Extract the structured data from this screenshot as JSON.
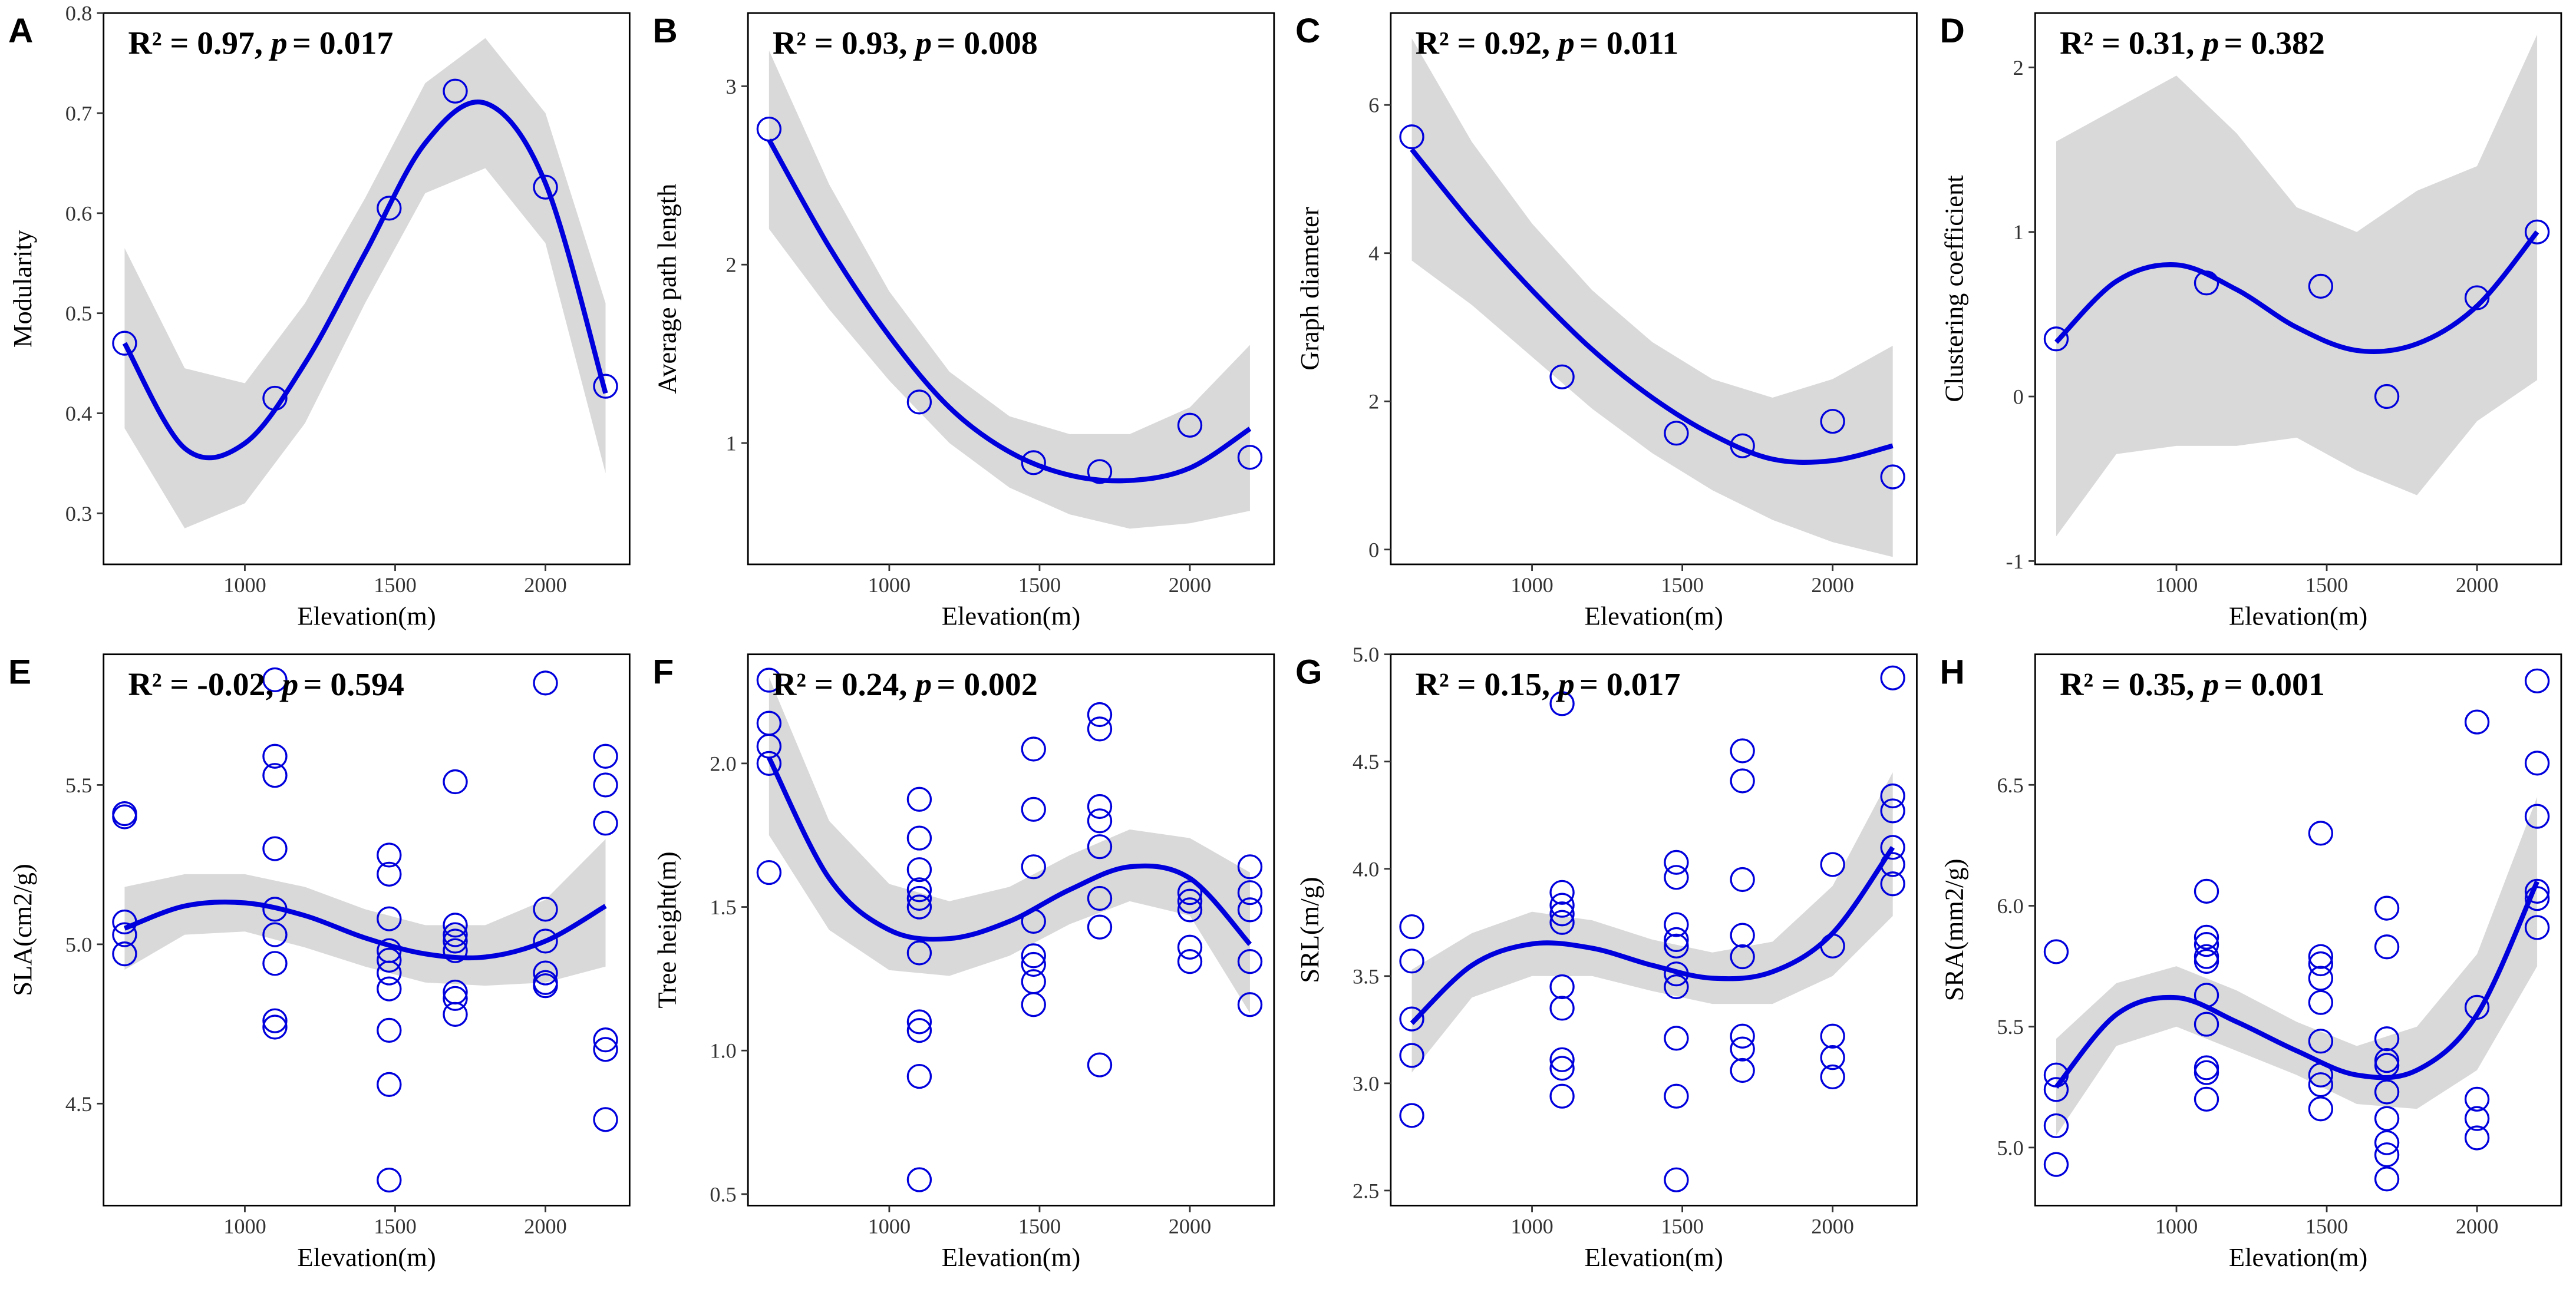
{
  "chart_data": [
    {
      "type": "scatter",
      "label": "A",
      "r2_text": "R² = 0.97,",
      "p_symbol": "p",
      "p_text": "= 0.017",
      "xlabel": "Elevation(m)",
      "ylabel": "Modularity",
      "color": "#0000dd",
      "band_color": "#d9d9d9",
      "xlim": [
        530,
        2280
      ],
      "xticks": [
        1000,
        1500,
        2000
      ],
      "ylim": [
        0.249,
        0.8
      ],
      "yticks": [
        0.3,
        0.4,
        0.5,
        0.6,
        0.7,
        0.8
      ],
      "x": [
        600,
        1100,
        1480,
        1700,
        2000,
        2200
      ],
      "y": [
        0.47,
        0.415,
        0.605,
        0.722,
        0.626,
        0.427
      ],
      "fit_x": [
        600,
        800,
        1000,
        1200,
        1400,
        1600,
        1800,
        2000,
        2200
      ],
      "fit_y": [
        0.47,
        0.365,
        0.37,
        0.45,
        0.56,
        0.67,
        0.71,
        0.63,
        0.42
      ],
      "fit_lower": [
        0.385,
        0.285,
        0.31,
        0.39,
        0.51,
        0.62,
        0.645,
        0.57,
        0.34
      ],
      "fit_upper": [
        0.565,
        0.445,
        0.43,
        0.51,
        0.615,
        0.73,
        0.775,
        0.7,
        0.51
      ]
    },
    {
      "type": "scatter",
      "label": "B",
      "r2_text": "R² = 0.93,",
      "p_symbol": "p",
      "p_text": "= 0.008",
      "xlabel": "Elevation(m)",
      "ylabel": "Average path length",
      "color": "#0000dd",
      "band_color": "#d9d9d9",
      "xlim": [
        530,
        2280
      ],
      "xticks": [
        1000,
        1500,
        2000
      ],
      "ylim": [
        0.32,
        3.41
      ],
      "yticks": [
        1,
        2,
        3
      ],
      "x": [
        600,
        1100,
        1480,
        1700,
        2000,
        2200
      ],
      "y": [
        2.76,
        1.23,
        0.89,
        0.84,
        1.1,
        0.92
      ],
      "fit_x": [
        600,
        800,
        1000,
        1200,
        1400,
        1600,
        1800,
        2000,
        2200
      ],
      "fit_y": [
        2.7,
        2.1,
        1.6,
        1.2,
        0.95,
        0.82,
        0.79,
        0.86,
        1.08
      ],
      "fit_lower": [
        2.2,
        1.75,
        1.35,
        1.0,
        0.75,
        0.6,
        0.52,
        0.55,
        0.62
      ],
      "fit_upper": [
        3.2,
        2.45,
        1.85,
        1.4,
        1.15,
        1.05,
        1.05,
        1.2,
        1.55
      ]
    },
    {
      "type": "scatter",
      "label": "C",
      "r2_text": "R² = 0.92,",
      "p_symbol": "p",
      "p_text": "= 0.011",
      "xlabel": "Elevation(m)",
      "ylabel": "Graph diameter",
      "color": "#0000dd",
      "band_color": "#d9d9d9",
      "xlim": [
        530,
        2280
      ],
      "xticks": [
        1000,
        1500,
        2000
      ],
      "ylim": [
        -0.2,
        7.24
      ],
      "yticks": [
        0,
        2,
        4,
        6
      ],
      "x": [
        600,
        1100,
        1480,
        1700,
        2000,
        2200
      ],
      "y": [
        5.57,
        2.33,
        1.57,
        1.4,
        1.73,
        0.98
      ],
      "fit_x": [
        600,
        800,
        1000,
        1200,
        1400,
        1600,
        1800,
        2000,
        2200
      ],
      "fit_y": [
        5.4,
        4.4,
        3.5,
        2.7,
        2.05,
        1.55,
        1.22,
        1.2,
        1.4
      ],
      "fit_lower": [
        3.9,
        3.3,
        2.6,
        1.9,
        1.3,
        0.8,
        0.4,
        0.1,
        -0.1
      ],
      "fit_upper": [
        6.9,
        5.5,
        4.4,
        3.5,
        2.8,
        2.3,
        2.05,
        2.3,
        2.75
      ]
    },
    {
      "type": "scatter",
      "label": "D",
      "r2_text": "R² = 0.31,",
      "p_symbol": "p",
      "p_text": "= 0.382",
      "xlabel": "Elevation(m)",
      "ylabel": "Clustering coefficient",
      "color": "#0000dd",
      "band_color": "#d9d9d9",
      "xlim": [
        530,
        2280
      ],
      "xticks": [
        1000,
        1500,
        2000
      ],
      "ylim": [
        -1.02,
        2.33
      ],
      "yticks": [
        -1,
        0,
        1,
        2
      ],
      "x": [
        600,
        1100,
        1480,
        1700,
        2000,
        2200
      ],
      "y": [
        0.35,
        0.69,
        0.67,
        0.0,
        0.6,
        1.0
      ],
      "fit_x": [
        600,
        800,
        1000,
        1200,
        1400,
        1600,
        1800,
        2000,
        2200
      ],
      "fit_y": [
        0.33,
        0.7,
        0.8,
        0.65,
        0.42,
        0.28,
        0.32,
        0.55,
        1.0
      ],
      "fit_lower": [
        -0.85,
        -0.35,
        -0.3,
        -0.3,
        -0.25,
        -0.45,
        -0.6,
        -0.15,
        0.1
      ],
      "fit_upper": [
        1.55,
        1.75,
        1.95,
        1.6,
        1.15,
        1.0,
        1.25,
        1.4,
        2.2
      ]
    },
    {
      "type": "scatter",
      "label": "E",
      "r2_text": "R² = -0.02,",
      "p_symbol": "p",
      "p_text": "= 0.594",
      "xlabel": "Elevation(m)",
      "ylabel": "SLA(cm2/g)",
      "color": "#0000dd",
      "band_color": "#d9d9d9",
      "xlim": [
        530,
        2280
      ],
      "xticks": [
        1000,
        1500,
        2000
      ],
      "ylim": [
        4.18,
        5.91
      ],
      "yticks": [
        4.5,
        {
          "value": 5,
          "label": "5.0"
        },
        5.5
      ],
      "x": [
        600,
        600,
        600,
        600,
        600,
        1100,
        1100,
        1100,
        1100,
        1100,
        1100,
        1100,
        1100,
        1100,
        1480,
        1480,
        1480,
        1480,
        1480,
        1480,
        1480,
        1480,
        1480,
        1480,
        1700,
        1700,
        1700,
        1700,
        1700,
        1700,
        1700,
        1700,
        2000,
        2000,
        2000,
        2000,
        2000,
        2000,
        2200,
        2200,
        2200,
        2200,
        2200,
        2200
      ],
      "y": [
        5.41,
        5.4,
        5.07,
        5.03,
        4.97,
        5.83,
        5.59,
        5.53,
        5.3,
        5.11,
        5.03,
        4.94,
        4.76,
        4.74,
        5.28,
        5.22,
        5.08,
        4.98,
        4.95,
        4.91,
        4.86,
        4.73,
        4.56,
        4.26,
        5.51,
        5.06,
        5.03,
        5.01,
        4.98,
        4.85,
        4.83,
        4.78,
        5.82,
        5.11,
        5.01,
        4.91,
        4.88,
        4.87,
        5.59,
        5.5,
        5.38,
        4.7,
        4.67,
        4.45
      ],
      "fit_x": [
        600,
        800,
        1000,
        1200,
        1400,
        1600,
        1800,
        2000,
        2200
      ],
      "fit_y": [
        5.05,
        5.12,
        5.13,
        5.09,
        5.02,
        4.97,
        4.96,
        5.01,
        5.12
      ],
      "fit_lower": [
        4.92,
        5.03,
        5.04,
        4.99,
        4.93,
        4.88,
        4.87,
        4.88,
        4.93
      ],
      "fit_upper": [
        5.18,
        5.22,
        5.22,
        5.18,
        5.11,
        5.06,
        5.06,
        5.14,
        5.33
      ]
    },
    {
      "type": "scatter",
      "label": "F",
      "r2_text": "R² = 0.24,",
      "p_symbol": "p",
      "p_text": "= 0.002",
      "xlabel": "Elevation(m)",
      "ylabel": "Tree height(m)",
      "color": "#0000dd",
      "band_color": "#d9d9d9",
      "xlim": [
        530,
        2280
      ],
      "xticks": [
        1000,
        1500,
        2000
      ],
      "ylim": [
        0.46,
        2.38
      ],
      "yticks": [
        0.5,
        {
          "value": 1,
          "label": "1.0"
        },
        1.5,
        {
          "value": 2,
          "label": "2.0"
        }
      ],
      "x": [
        600,
        600,
        600,
        600,
        600,
        1100,
        1100,
        1100,
        1100,
        1100,
        1100,
        1100,
        1100,
        1100,
        1100,
        1100,
        1480,
        1480,
        1480,
        1480,
        1480,
        1480,
        1480,
        1480,
        1700,
        1700,
        1700,
        1700,
        1700,
        1700,
        1700,
        1700,
        2000,
        2000,
        2000,
        2000,
        2000,
        2200,
        2200,
        2200,
        2200,
        2200
      ],
      "y": [
        2.29,
        2.14,
        2.06,
        2.0,
        1.62,
        1.875,
        1.74,
        1.63,
        1.56,
        1.53,
        1.5,
        1.34,
        1.1,
        1.07,
        0.91,
        0.55,
        2.05,
        1.84,
        1.64,
        1.45,
        1.33,
        1.3,
        1.24,
        1.16,
        2.17,
        2.12,
        1.85,
        1.8,
        1.71,
        1.53,
        1.43,
        0.95,
        1.55,
        1.52,
        1.49,
        1.36,
        1.31,
        1.64,
        1.55,
        1.49,
        1.31,
        1.16
      ],
      "fit_x": [
        600,
        800,
        1000,
        1200,
        1400,
        1600,
        1800,
        2000,
        2200
      ],
      "fit_y": [
        2.02,
        1.6,
        1.42,
        1.39,
        1.45,
        1.56,
        1.64,
        1.6,
        1.37
      ],
      "fit_lower": [
        1.75,
        1.42,
        1.28,
        1.26,
        1.33,
        1.44,
        1.52,
        1.47,
        1.13
      ],
      "fit_upper": [
        2.3,
        1.8,
        1.58,
        1.52,
        1.57,
        1.68,
        1.77,
        1.74,
        1.62
      ]
    },
    {
      "type": "scatter",
      "label": "G",
      "r2_text": "R² = 0.15,",
      "p_symbol": "p",
      "p_text": "= 0.017",
      "xlabel": "Elevation(m)",
      "ylabel": "SRL(m/g)",
      "color": "#0000dd",
      "band_color": "#d9d9d9",
      "xlim": [
        530,
        2280
      ],
      "xticks": [
        1000,
        1500,
        2000
      ],
      "ylim": [
        2.43,
        5.0
      ],
      "yticks": [
        2.5,
        {
          "value": 3,
          "label": "3.0"
        },
        3.5,
        {
          "value": 4,
          "label": "4.0"
        },
        4.5,
        {
          "value": 5,
          "label": "5.0"
        }
      ],
      "x": [
        600,
        600,
        600,
        600,
        600,
        1100,
        1100,
        1100,
        1100,
        1100,
        1100,
        1100,
        1100,
        1100,
        1100,
        1480,
        1480,
        1480,
        1480,
        1480,
        1480,
        1480,
        1480,
        1480,
        1480,
        1700,
        1700,
        1700,
        1700,
        1700,
        1700,
        1700,
        1700,
        2000,
        2000,
        2000,
        2000,
        2000,
        2200,
        2200,
        2200,
        2200,
        2200,
        2200
      ],
      "y": [
        3.73,
        3.57,
        3.3,
        3.13,
        2.85,
        4.77,
        3.89,
        3.83,
        3.79,
        3.75,
        3.45,
        3.35,
        3.11,
        3.07,
        2.94,
        4.03,
        3.96,
        3.74,
        3.67,
        3.64,
        3.51,
        3.45,
        3.21,
        2.94,
        2.55,
        4.55,
        4.41,
        3.95,
        3.69,
        3.59,
        3.22,
        3.16,
        3.06,
        4.02,
        3.64,
        3.22,
        3.12,
        3.03,
        4.89,
        4.34,
        4.27,
        4.1,
        4.02,
        3.93
      ],
      "fit_x": [
        600,
        800,
        1000,
        1200,
        1400,
        1600,
        1800,
        2000,
        2200
      ],
      "fit_y": [
        3.28,
        3.55,
        3.65,
        3.63,
        3.55,
        3.49,
        3.52,
        3.7,
        4.1
      ],
      "fit_lower": [
        3.05,
        3.4,
        3.5,
        3.5,
        3.43,
        3.37,
        3.37,
        3.5,
        3.78
      ],
      "fit_upper": [
        3.53,
        3.7,
        3.8,
        3.76,
        3.67,
        3.61,
        3.66,
        3.92,
        4.45
      ]
    },
    {
      "type": "scatter",
      "label": "H",
      "r2_text": "R² = 0.35,",
      "p_symbol": "p",
      "p_text": "= 0.001",
      "xlabel": "Elevation(m)",
      "ylabel": "SRA(mm2/g)",
      "color": "#0000dd",
      "band_color": "#d9d9d9",
      "xlim": [
        530,
        2280
      ],
      "xticks": [
        1000,
        1500,
        2000
      ],
      "ylim": [
        4.76,
        7.04
      ],
      "yticks": [
        {
          "value": 5,
          "label": "5.0"
        },
        5.5,
        {
          "value": 6,
          "label": "6.0"
        },
        6.5
      ],
      "x": [
        600,
        600,
        600,
        600,
        600,
        1100,
        1100,
        1100,
        1100,
        1100,
        1100,
        1100,
        1100,
        1100,
        1100,
        1480,
        1480,
        1480,
        1480,
        1480,
        1480,
        1480,
        1480,
        1480,
        1700,
        1700,
        1700,
        1700,
        1700,
        1700,
        1700,
        1700,
        1700,
        1700,
        2000,
        2000,
        2000,
        2000,
        2000,
        2200,
        2200,
        2200,
        2200,
        2200,
        2200
      ],
      "y": [
        5.81,
        5.3,
        5.24,
        5.09,
        4.93,
        6.06,
        5.87,
        5.84,
        5.79,
        5.77,
        5.63,
        5.51,
        5.33,
        5.31,
        5.2,
        6.3,
        5.79,
        5.76,
        5.7,
        5.6,
        5.44,
        5.3,
        5.26,
        5.16,
        5.99,
        5.83,
        5.45,
        5.36,
        5.34,
        5.23,
        5.12,
        5.02,
        4.97,
        4.87,
        6.76,
        5.58,
        5.2,
        5.12,
        5.04,
        6.93,
        6.59,
        6.37,
        6.06,
        6.03,
        5.91
      ],
      "fit_x": [
        600,
        800,
        1000,
        1200,
        1400,
        1600,
        1800,
        2000,
        2200
      ],
      "fit_y": [
        5.25,
        5.55,
        5.62,
        5.52,
        5.4,
        5.3,
        5.32,
        5.55,
        6.1
      ],
      "fit_lower": [
        5.05,
        5.42,
        5.5,
        5.4,
        5.3,
        5.18,
        5.16,
        5.32,
        5.75
      ],
      "fit_upper": [
        5.45,
        5.68,
        5.75,
        5.65,
        5.52,
        5.42,
        5.5,
        5.8,
        6.45
      ]
    }
  ]
}
